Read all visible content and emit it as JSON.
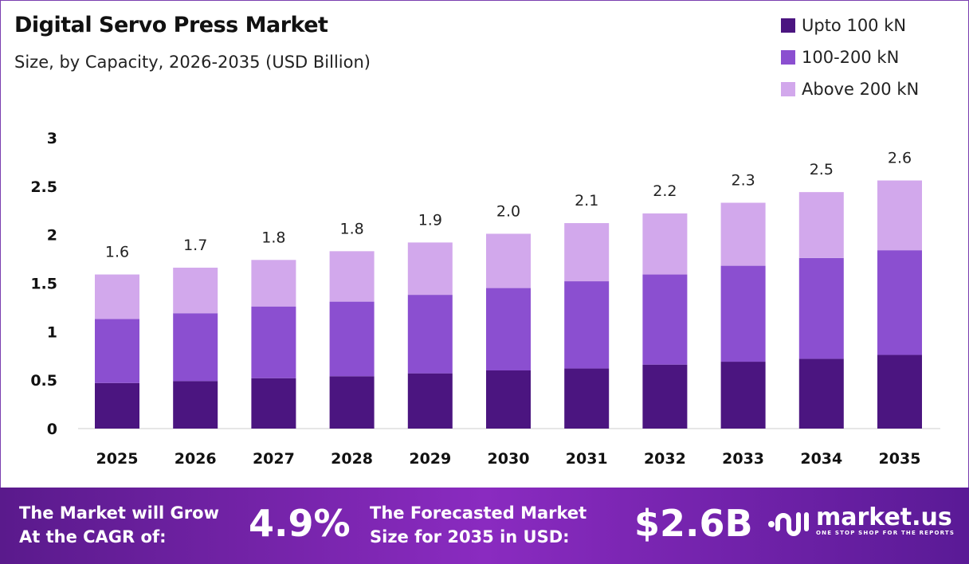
{
  "chart_data": {
    "type": "bar",
    "stacked": true,
    "title": "Digital Servo Press Market",
    "subtitle": "Size, by Capacity, 2026-2035 (USD Billion)",
    "categories": [
      "2025",
      "2026",
      "2027",
      "2028",
      "2029",
      "2030",
      "2031",
      "2032",
      "2033",
      "2034",
      "2035"
    ],
    "series": [
      {
        "name": "Upto 100 kN",
        "color": "#4b1580",
        "values": [
          0.47,
          0.49,
          0.52,
          0.54,
          0.57,
          0.6,
          0.62,
          0.66,
          0.69,
          0.72,
          0.76
        ]
      },
      {
        "name": "100-200 kN",
        "color": "#8b4fd0",
        "values": [
          0.66,
          0.7,
          0.74,
          0.77,
          0.81,
          0.85,
          0.9,
          0.93,
          0.99,
          1.04,
          1.08
        ]
      },
      {
        "name": "Above 200 kN",
        "color": "#d2a8ec",
        "values": [
          0.46,
          0.47,
          0.48,
          0.52,
          0.54,
          0.56,
          0.6,
          0.63,
          0.65,
          0.68,
          0.72
        ]
      }
    ],
    "totals_labels": [
      "1.6",
      "1.7",
      "1.8",
      "1.8",
      "1.9",
      "2.0",
      "2.1",
      "2.2",
      "2.3",
      "2.5",
      "2.6"
    ],
    "ylim": [
      0,
      3
    ],
    "yticks": [
      "0",
      "0.5",
      "1",
      "1.5",
      "2",
      "2.5",
      "3"
    ],
    "xlabel": "",
    "ylabel": "",
    "grid": false,
    "legend_position": "top-right"
  },
  "footer": {
    "cagr_text_1": "The Market will Grow",
    "cagr_text_2": "At the CAGR of:",
    "cagr_value": "4.9%",
    "forecast_text_1": "The Forecasted Market",
    "forecast_text_2": "Size for 2035 in USD:",
    "forecast_value": "$2.6B",
    "logo_name": "market.us",
    "logo_tagline": "ONE STOP SHOP FOR THE REPORTS"
  }
}
